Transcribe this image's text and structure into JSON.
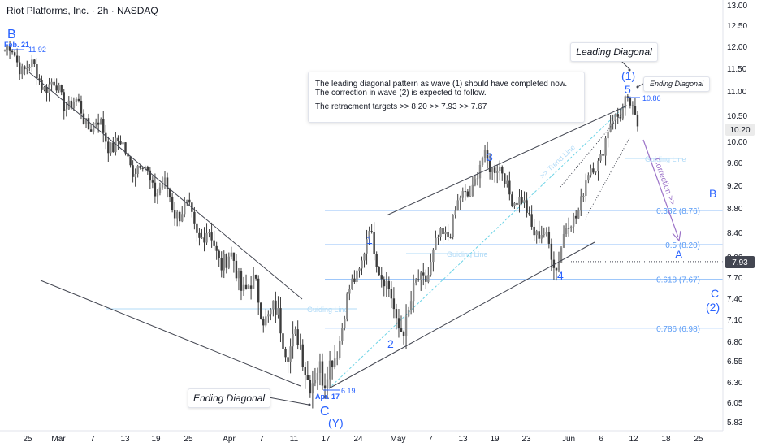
{
  "symbol_title": "Riot Platforms, Inc. · 2h · NASDAQ",
  "info_box": {
    "line1": "The leading diagonal pattern as wave (1) should have completed now.",
    "line2": "The correction in wave (2) is expected to follow.",
    "line3": "The retracment targets >>  8.20  >>  7.93  >>  7.67"
  },
  "callouts": {
    "leading_diagonal": "Leading Diagonal",
    "ending_diagonal_top": "Ending Diagonal",
    "ending_diagonal_bottom": "Ending Diagonal"
  },
  "wave_labels": {
    "B_top": "B",
    "C_bottom": "C",
    "Y": "(Y)",
    "w1": "1",
    "w2": "2",
    "w3": "3",
    "w4": "4",
    "w5": "5",
    "one_paren": "(1)",
    "B_right": "B",
    "A_right": "A",
    "C_right": "C",
    "two_paren": "(2)"
  },
  "line_labels": {
    "guiding_line": "Guiding Line",
    "trend_line": ">> Trend Line",
    "correction": "Correction >>"
  },
  "date_tags": {
    "feb21": "Feb. 21",
    "apr17": "Apr. 17"
  },
  "colors": {
    "wave": "#2962ff",
    "fib": "#90bff9",
    "fib_text": "#5b9cf6",
    "trend": "#434651",
    "guide": "#b2dbf7",
    "correction": "#9c73c8",
    "candle": "#3c3c3c"
  },
  "chart_data": {
    "type": "candlestick",
    "title": "Riot Platforms, Inc. · 2h · NASDAQ",
    "y_axis_ticks": [
      13.0,
      12.5,
      12.0,
      11.5,
      11.0,
      10.5,
      10.0,
      9.6,
      9.2,
      8.8,
      8.4,
      8.0,
      7.7,
      7.4,
      7.1,
      6.8,
      6.55,
      6.3,
      6.05,
      5.83
    ],
    "y_axis_tick_labels": [
      "13.00",
      "12.50",
      "12.00",
      "11.50",
      "11.00",
      "10.50",
      "10.00",
      "9.60",
      "9.20",
      "8.80",
      "8.40",
      "8.00",
      "7.70",
      "7.40",
      "7.10",
      "6.80",
      "6.55",
      "6.30",
      "6.05",
      "5.83"
    ],
    "x_axis_ticks": [
      "25",
      "Mar",
      "7",
      "13",
      "19",
      "25",
      "Apr",
      "7",
      "11",
      "17",
      "24",
      "May",
      "7",
      "13",
      "19",
      "23",
      "Jun",
      "6",
      "12",
      "18",
      "25"
    ],
    "current_price": "10.20",
    "price_level_label": "7.93",
    "annotated_prices": {
      "feb21_high": "11.92",
      "apr17_low": "6.19",
      "wave5_high": "10.86"
    },
    "fib_levels": [
      {
        "ratio": "0.382",
        "price": 8.76,
        "label": "0.382 (8.76)"
      },
      {
        "ratio": "0.5",
        "price": 8.2,
        "label": "0.5 (8.20)"
      },
      {
        "ratio": "0.618",
        "price": 7.67,
        "label": "0.618 (7.67)"
      },
      {
        "ratio": "0.786",
        "price": 6.98,
        "label": "0.786 (6.98)"
      }
    ],
    "dotted_level": 7.93,
    "waves": [
      {
        "label": "B",
        "date": "Feb. 21",
        "price": 11.92
      },
      {
        "label": "C (Y)",
        "date": "Apr. 17",
        "price": 6.19
      },
      {
        "label": "1",
        "price": 8.4
      },
      {
        "label": "2",
        "price": 6.95
      },
      {
        "label": "3",
        "price": 9.7
      },
      {
        "label": "4",
        "price": 7.95
      },
      {
        "label": "5 (1)",
        "price": 10.86
      }
    ],
    "segments": [
      {
        "start": 11.92,
        "end": 6.19,
        "bars": 130,
        "noise": 0.3
      },
      {
        "start": 6.19,
        "end": 8.4,
        "bars": 18,
        "noise": 0.22
      },
      {
        "start": 8.4,
        "end": 6.95,
        "bars": 12,
        "noise": 0.2
      },
      {
        "start": 6.95,
        "end": 9.7,
        "bars": 36,
        "noise": 0.24
      },
      {
        "start": 9.7,
        "end": 7.95,
        "bars": 28,
        "noise": 0.22
      },
      {
        "start": 7.95,
        "end": 10.86,
        "bars": 28,
        "noise": 0.25
      },
      {
        "start": 10.86,
        "end": 10.2,
        "bars": 6,
        "noise": 0.15
      }
    ]
  }
}
